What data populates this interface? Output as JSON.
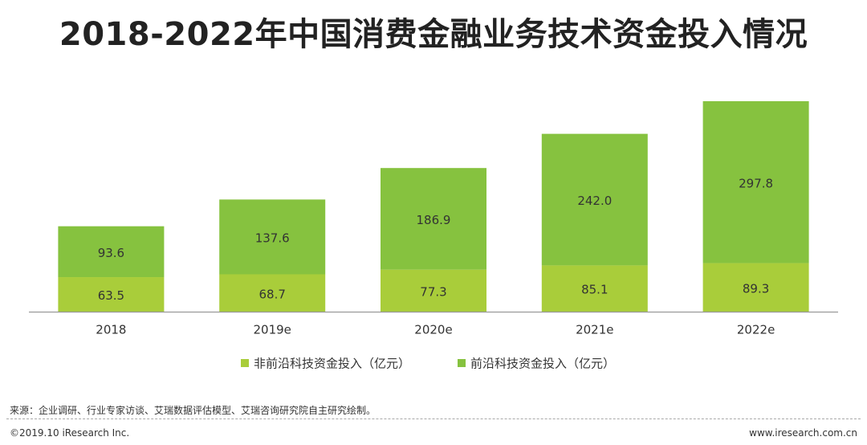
{
  "chart_data": {
    "type": "bar",
    "stacked": true,
    "title": "2018-2022年中国消费金融业务技术资金投入情况",
    "categories": [
      "2018",
      "2019e",
      "2020e",
      "2021e",
      "2022e"
    ],
    "series": [
      {
        "name": "非前沿科技资金投入（亿元）",
        "values": [
          63.5,
          68.7,
          77.3,
          85.1,
          89.3
        ],
        "color": "#a9cd3a"
      },
      {
        "name": "前沿科技资金投入（亿元）",
        "values": [
          93.6,
          137.6,
          186.9,
          242.0,
          297.8
        ],
        "color": "#86c23f"
      }
    ],
    "value_labels": [
      [
        "63.5",
        "68.7",
        "77.3",
        "85.1",
        "89.3"
      ],
      [
        "93.6",
        "137.6",
        "186.9",
        "242.0",
        "297.8"
      ]
    ],
    "xlabel": "",
    "ylabel": "",
    "ylim": [
      0,
      400
    ],
    "legend_position": "bottom"
  },
  "footer": {
    "source": "来源：企业调研、行业专家访谈、艾瑞数据评估模型、艾瑞咨询研究院自主研究绘制。",
    "copyright": "©2019.10 iResearch Inc.",
    "website": "www.iresearch.com.cn"
  },
  "colors": {
    "axis": "#999999",
    "label": "#333333"
  }
}
